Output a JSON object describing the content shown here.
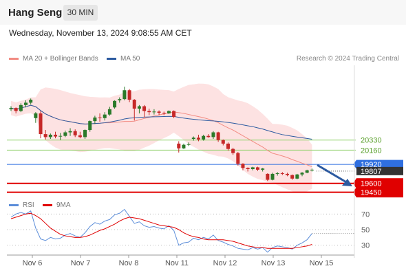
{
  "header": {
    "title": "Hang Seng",
    "timeframe": "30 MIN"
  },
  "datetime": "Wednesday, November 13, 2024 9:08:55 AM CET",
  "credit": "Research © 2024 Trading Central",
  "legend": {
    "ma20": {
      "label": "MA 20 + Bollinger Bands",
      "color": "#f28b82"
    },
    "ma50": {
      "label": "MA 50",
      "color": "#2c5aa0"
    }
  },
  "rsi_legend": {
    "rsi": {
      "label": "RSI",
      "color": "#5b8dd9"
    },
    "ma9": {
      "label": "9MA",
      "color": "#e00000"
    }
  },
  "colors": {
    "up": "#2a7a2a",
    "down": "#c62828",
    "band": "#fde2e2",
    "resistance": "#8fd16a",
    "pivot": "#2f6fe0",
    "support": "#e00000",
    "current": "#333333"
  },
  "chart_data": [
    {
      "type": "candlestick",
      "title": "Hang Seng",
      "x_tick_labels": [
        "Nov 6",
        "Nov 7",
        "Nov 8",
        "Nov 11",
        "Nov 12",
        "Nov 13",
        "Nov 15"
      ],
      "ylim": [
        19330,
        21590
      ],
      "price_levels": [
        {
          "label": "20330",
          "value": 20330,
          "kind": "resistance"
        },
        {
          "label": "20160",
          "value": 20160,
          "kind": "resistance"
        },
        {
          "label": "19920",
          "value": 19920,
          "kind": "pivot"
        },
        {
          "label": "19807",
          "value": 19807,
          "kind": "current"
        },
        {
          "label": "19600",
          "value": 19600,
          "kind": "support"
        },
        {
          "label": "19450",
          "value": 19450,
          "kind": "support"
        }
      ],
      "ohlc": [
        [
          20850,
          20900,
          20820,
          20870
        ],
        [
          20870,
          20880,
          20780,
          20820
        ],
        [
          20820,
          20950,
          20800,
          20920
        ],
        [
          20920,
          21000,
          20880,
          20960
        ],
        [
          20960,
          21030,
          20930,
          21010
        ],
        [
          20700,
          20800,
          20620,
          20780
        ],
        [
          20780,
          20820,
          20360,
          20430
        ],
        [
          20430,
          20500,
          20340,
          20380
        ],
        [
          20380,
          20440,
          20350,
          20420
        ],
        [
          20420,
          20470,
          20360,
          20390
        ],
        [
          20390,
          20450,
          20330,
          20400
        ],
        [
          20400,
          20490,
          20380,
          20460
        ],
        [
          20460,
          20530,
          20400,
          20480
        ],
        [
          20480,
          20510,
          20380,
          20410
        ],
        [
          20410,
          20470,
          20360,
          20380
        ],
        [
          20380,
          20510,
          20350,
          20500
        ],
        [
          20500,
          20660,
          20470,
          20650
        ],
        [
          20650,
          20740,
          20600,
          20710
        ],
        [
          20710,
          20780,
          20640,
          20700
        ],
        [
          20700,
          20800,
          20660,
          20760
        ],
        [
          20760,
          20890,
          20740,
          20850
        ],
        [
          20880,
          21000,
          20860,
          20990
        ],
        [
          21000,
          21050,
          20960,
          21020
        ],
        [
          21020,
          21230,
          21000,
          21170
        ],
        [
          21170,
          21190,
          20970,
          21010
        ],
        [
          21010,
          21020,
          20660,
          20860
        ],
        [
          20860,
          20920,
          20780,
          20900
        ],
        [
          20900,
          20920,
          20710,
          20820
        ],
        [
          20820,
          20860,
          20750,
          20800
        ],
        [
          20800,
          20850,
          20760,
          20810
        ],
        [
          20810,
          20830,
          20750,
          20790
        ],
        [
          20790,
          20810,
          20750,
          20780
        ],
        [
          20780,
          20830,
          20770,
          20820
        ],
        [
          20820,
          20830,
          20700,
          20720
        ],
        [
          20270,
          20310,
          20120,
          20190
        ],
        [
          20190,
          20270,
          20180,
          20250
        ],
        [
          20250,
          20290,
          20230,
          20260
        ],
        [
          20350,
          20390,
          20320,
          20370
        ],
        [
          20370,
          20420,
          20310,
          20340
        ],
        [
          20340,
          20420,
          20320,
          20400
        ],
        [
          20400,
          20430,
          20370,
          20380
        ],
        [
          20380,
          20480,
          20350,
          20460
        ],
        [
          20460,
          20470,
          20300,
          20330
        ],
        [
          20330,
          20340,
          20240,
          20270
        ],
        [
          20270,
          20290,
          20150,
          20180
        ],
        [
          20180,
          20200,
          20080,
          20110
        ],
        [
          20110,
          20130,
          19900,
          19930
        ],
        [
          19930,
          19940,
          19820,
          19860
        ],
        [
          19860,
          19870,
          19800,
          19840
        ],
        [
          19840,
          19880,
          19820,
          19870
        ],
        [
          19870,
          19880,
          19810,
          19830
        ],
        [
          19830,
          19860,
          19800,
          19850
        ],
        [
          19760,
          19770,
          19640,
          19660
        ],
        [
          19660,
          19780,
          19650,
          19760
        ],
        [
          19760,
          19790,
          19730,
          19770
        ],
        [
          19770,
          19790,
          19740,
          19760
        ],
        [
          19760,
          19780,
          19720,
          19740
        ],
        [
          19740,
          19750,
          19660,
          19680
        ],
        [
          19680,
          19760,
          19670,
          19750
        ],
        [
          19750,
          19790,
          19720,
          19780
        ],
        [
          19780,
          19830,
          19770,
          19820
        ],
        [
          19820,
          19850,
          19800,
          19830
        ]
      ]
    },
    {
      "type": "line",
      "title": "RSI",
      "ylim": [
        20,
        80
      ],
      "y_ticks": [
        70,
        50,
        30
      ],
      "series": [
        {
          "name": "RSI",
          "values": [
            66,
            70,
            72,
            70,
            74,
            52,
            38,
            36,
            40,
            38,
            39,
            43,
            45,
            42,
            40,
            46,
            54,
            59,
            57,
            61,
            63,
            69,
            71,
            76,
            67,
            58,
            60,
            55,
            53,
            54,
            52,
            51,
            55,
            49,
            30,
            33,
            34,
            39,
            37,
            40,
            38,
            43,
            36,
            34,
            31,
            29,
            26,
            25,
            24,
            27,
            25,
            27,
            21,
            27,
            29,
            28,
            27,
            25,
            30,
            33,
            37,
            45
          ]
        },
        {
          "name": "9MA",
          "values": [
            64,
            66,
            68,
            70,
            71,
            68,
            64,
            58,
            52,
            48,
            44,
            42,
            41,
            40,
            40,
            41,
            43,
            46,
            49,
            51,
            54,
            57,
            61,
            64,
            66,
            65,
            64,
            62,
            60,
            58,
            56,
            55,
            54,
            53,
            50,
            46,
            43,
            41,
            40,
            38,
            37,
            37,
            37,
            37,
            36,
            35,
            33,
            31,
            29,
            28,
            27,
            27,
            26,
            26,
            26,
            26,
            26,
            26,
            27,
            28,
            29,
            31
          ]
        }
      ]
    }
  ]
}
